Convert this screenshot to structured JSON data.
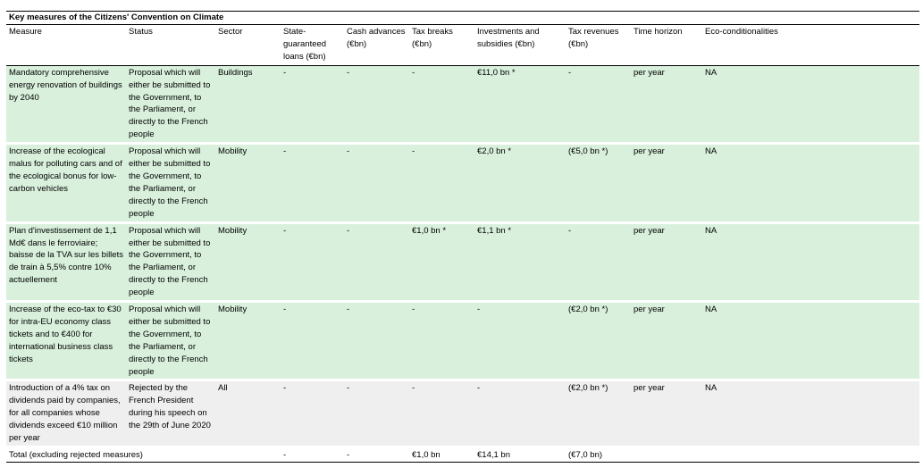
{
  "title": "Key measures of the Citizens' Convention on Climate",
  "columns": [
    "Measure",
    "Status",
    "Sector",
    "State-guaranteed loans (€bn)",
    "Cash advances (€bn)",
    "Tax breaks (€bn)",
    "Investments and subsidies (€bn)",
    "Tax revenues (€bn)",
    "Time horizon",
    "Eco-conditionalities"
  ],
  "rows": [
    {
      "measure": "Mandatory comprehensive energy renovation of buildings by 2040",
      "status": "Proposal which will either be submitted to the Government, to the Parliament, or directly to the French people",
      "sector": "Buildings",
      "loans": "-",
      "cash": "-",
      "tax_breaks": "-",
      "investments": "€11,0 bn *",
      "tax_revenues": "-",
      "time_horizon": "per year",
      "eco": "NA"
    },
    {
      "measure": "Increase of the ecological malus for polluting cars and of the ecological bonus for low-carbon vehicles",
      "status": "Proposal which will either be submitted to the Government, to the Parliament, or directly to the French people",
      "sector": "Mobility",
      "loans": "-",
      "cash": "-",
      "tax_breaks": "-",
      "investments": "€2,0 bn *",
      "tax_revenues": "(€5,0 bn *)",
      "time_horizon": "per year",
      "eco": "NA"
    },
    {
      "measure": "Plan d'investissement de 1,1 Md€ dans le ferroviaire; baisse de la TVA sur les billets de train à 5,5% contre 10% actuellement",
      "status": "Proposal which will either be submitted to the Government, to the Parliament, or directly to the French people",
      "sector": "Mobility",
      "loans": "-",
      "cash": "-",
      "tax_breaks": "€1,0 bn *",
      "investments": "€1,1 bn *",
      "tax_revenues": "-",
      "time_horizon": "per year",
      "eco": "NA"
    },
    {
      "measure": "Increase of the eco-tax to €30 for intra-EU economy class tickets and to €400 for international business class tickets",
      "status": "Proposal which will either be submitted to the Government, to the Parliament, or directly to the French people",
      "sector": "Mobility",
      "loans": "-",
      "cash": "-",
      "tax_breaks": "-",
      "investments": "-",
      "tax_revenues": "(€2,0 bn *)",
      "time_horizon": "per year",
      "eco": "NA"
    },
    {
      "measure": "Introduction of a 4% tax on dividends paid by companies, for all companies whose dividends exceed €10 million per year",
      "status": "Rejected by the French President during his speech on the 29th of June 2020",
      "sector": "All",
      "loans": "-",
      "cash": "-",
      "tax_breaks": "-",
      "investments": "-",
      "tax_revenues": "(€2,0 bn *)",
      "time_horizon": "per year",
      "eco": "NA"
    }
  ],
  "total": {
    "label": "Total (excluding rejected measures)",
    "loans": "-",
    "cash": "-",
    "tax_breaks": "€1,0 bn",
    "investments": "€14,1 bn",
    "tax_revenues": "(€7,0 bn)"
  },
  "colors": {
    "proposal_row": "#d8f0dc",
    "rejected_row": "#efefef"
  }
}
